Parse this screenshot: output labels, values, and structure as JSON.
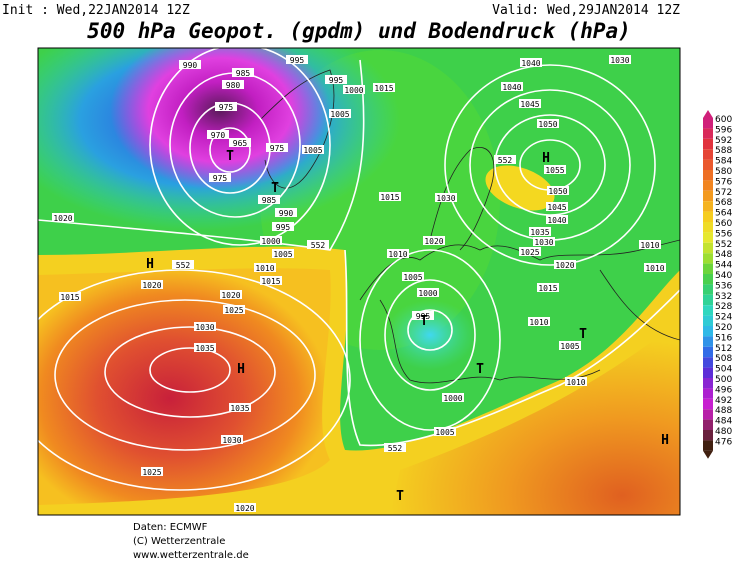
{
  "header": {
    "init": "Init : Wed,22JAN2014 12Z",
    "valid": "Valid: Wed,29JAN2014 12Z",
    "title": "500 hPa Geopot. (gpdm) und Bodendruck (hPa)"
  },
  "colorbar": {
    "labels": [
      600,
      596,
      592,
      588,
      584,
      580,
      576,
      572,
      568,
      564,
      560,
      556,
      552,
      548,
      544,
      540,
      536,
      532,
      528,
      524,
      520,
      516,
      512,
      508,
      504,
      500,
      496,
      492,
      488,
      484,
      480,
      476
    ]
  },
  "isobar_labels": [
    "990",
    "985",
    "995",
    "980",
    "975",
    "970",
    "965",
    "975",
    "975",
    "985",
    "990",
    "995",
    "1000",
    "1005",
    "1010",
    "1015",
    "1020",
    "1025",
    "1030",
    "1035",
    "1035",
    "1030",
    "1025",
    "1020",
    "1020",
    "1020",
    "1015",
    "1005",
    "1000",
    "1015",
    "995",
    "1005",
    "1015",
    "1010",
    "1005",
    "1000",
    "995",
    "1000",
    "1005",
    "1020",
    "1030",
    "1040",
    "1030",
    "1045",
    "1050",
    "1055",
    "1050",
    "1045",
    "1040",
    "1035",
    "1030",
    "1025",
    "1020",
    "1015",
    "1010",
    "1005",
    "1010",
    "1010",
    "1010",
    "1040"
  ],
  "height_labels": [
    "552",
    "552",
    "552",
    "552"
  ],
  "pressure_centers": [
    "H",
    "H",
    "H",
    "H",
    "T",
    "T",
    "T",
    "T",
    "T",
    "T"
  ],
  "footer": {
    "lines": [
      "Daten: ECMWF",
      "(C) Wetterzentrale",
      "www.wetterzentrale.de"
    ]
  }
}
